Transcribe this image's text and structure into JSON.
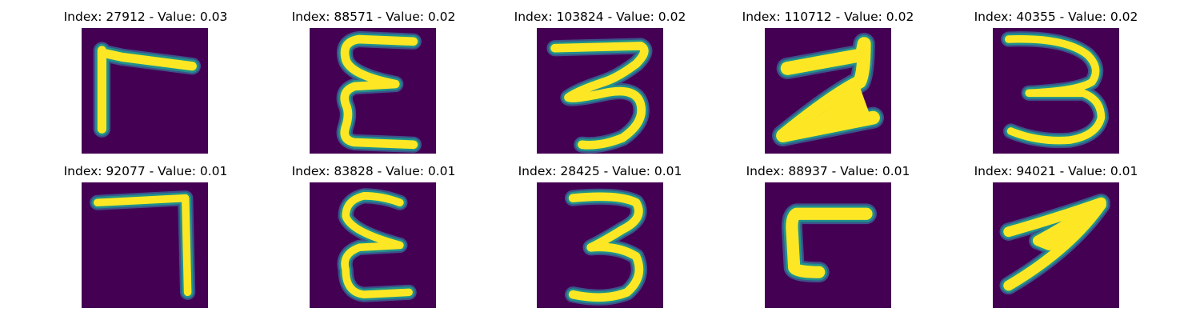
{
  "colors": {
    "background": "#440154",
    "stroke_core": "#fde725",
    "stroke_edge": "#21918c",
    "stroke_halo": "#3b528b"
  },
  "panels": [
    {
      "title": "Index: 27912 - Value: 0.03",
      "index": 27912,
      "value": 0.03
    },
    {
      "title": "Index: 88571 - Value: 0.02",
      "index": 88571,
      "value": 0.02
    },
    {
      "title": "Index: 103824 - Value: 0.02",
      "index": 103824,
      "value": 0.02
    },
    {
      "title": "Index: 110712 - Value: 0.02",
      "index": 110712,
      "value": 0.02
    },
    {
      "title": "Index: 40355 - Value: 0.02",
      "index": 40355,
      "value": 0.02
    },
    {
      "title": "Index: 92077 - Value: 0.01",
      "index": 92077,
      "value": 0.01
    },
    {
      "title": "Index: 83828 - Value: 0.01",
      "index": 83828,
      "value": 0.01
    },
    {
      "title": "Index: 28425 - Value: 0.01",
      "index": 28425,
      "value": 0.01
    },
    {
      "title": "Index: 88937 - Value: 0.01",
      "index": 88937,
      "value": 0.01
    },
    {
      "title": "Index: 94021 - Value: 0.01",
      "index": 94021,
      "value": 0.01
    }
  ]
}
